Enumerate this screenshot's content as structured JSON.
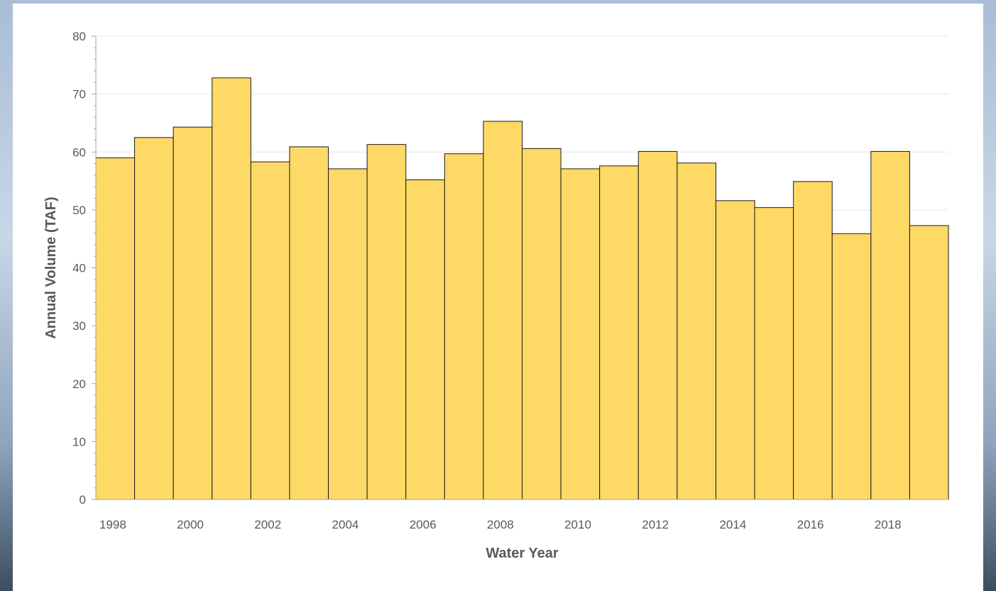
{
  "colors": {
    "bar_fill": "#FFD966",
    "bar_stroke": "#1a1a1a",
    "gridline": "#e6e6e6",
    "axis": "#a6a6a6",
    "text": "#595959"
  },
  "chart_data": {
    "type": "bar",
    "categories": [
      "1998",
      "1999",
      "2000",
      "2001",
      "2002",
      "2003",
      "2004",
      "2005",
      "2006",
      "2007",
      "2008",
      "2009",
      "2010",
      "2011",
      "2012",
      "2013",
      "2014",
      "2015",
      "2016",
      "2017",
      "2018",
      "2019"
    ],
    "x_tick_labels": [
      "1998",
      "",
      "2000",
      "",
      "2002",
      "",
      "2004",
      "",
      "2006",
      "",
      "2008",
      "",
      "2010",
      "",
      "2012",
      "",
      "2014",
      "",
      "2016",
      "",
      "2018",
      ""
    ],
    "values": [
      59,
      62.5,
      64.3,
      72.8,
      58.3,
      60.9,
      57.1,
      61.3,
      55.2,
      59.7,
      65.3,
      60.6,
      57.1,
      57.6,
      60.1,
      58.1,
      51.6,
      50.4,
      54.9,
      45.9,
      60.1,
      47.3
    ],
    "xlabel": "Water Year",
    "ylabel": "Annual Volume (TAF)",
    "ylim": [
      0,
      80
    ],
    "y_ticks": [
      0,
      10,
      20,
      30,
      40,
      50,
      60,
      70,
      80
    ],
    "grid": true,
    "legend": "none"
  }
}
